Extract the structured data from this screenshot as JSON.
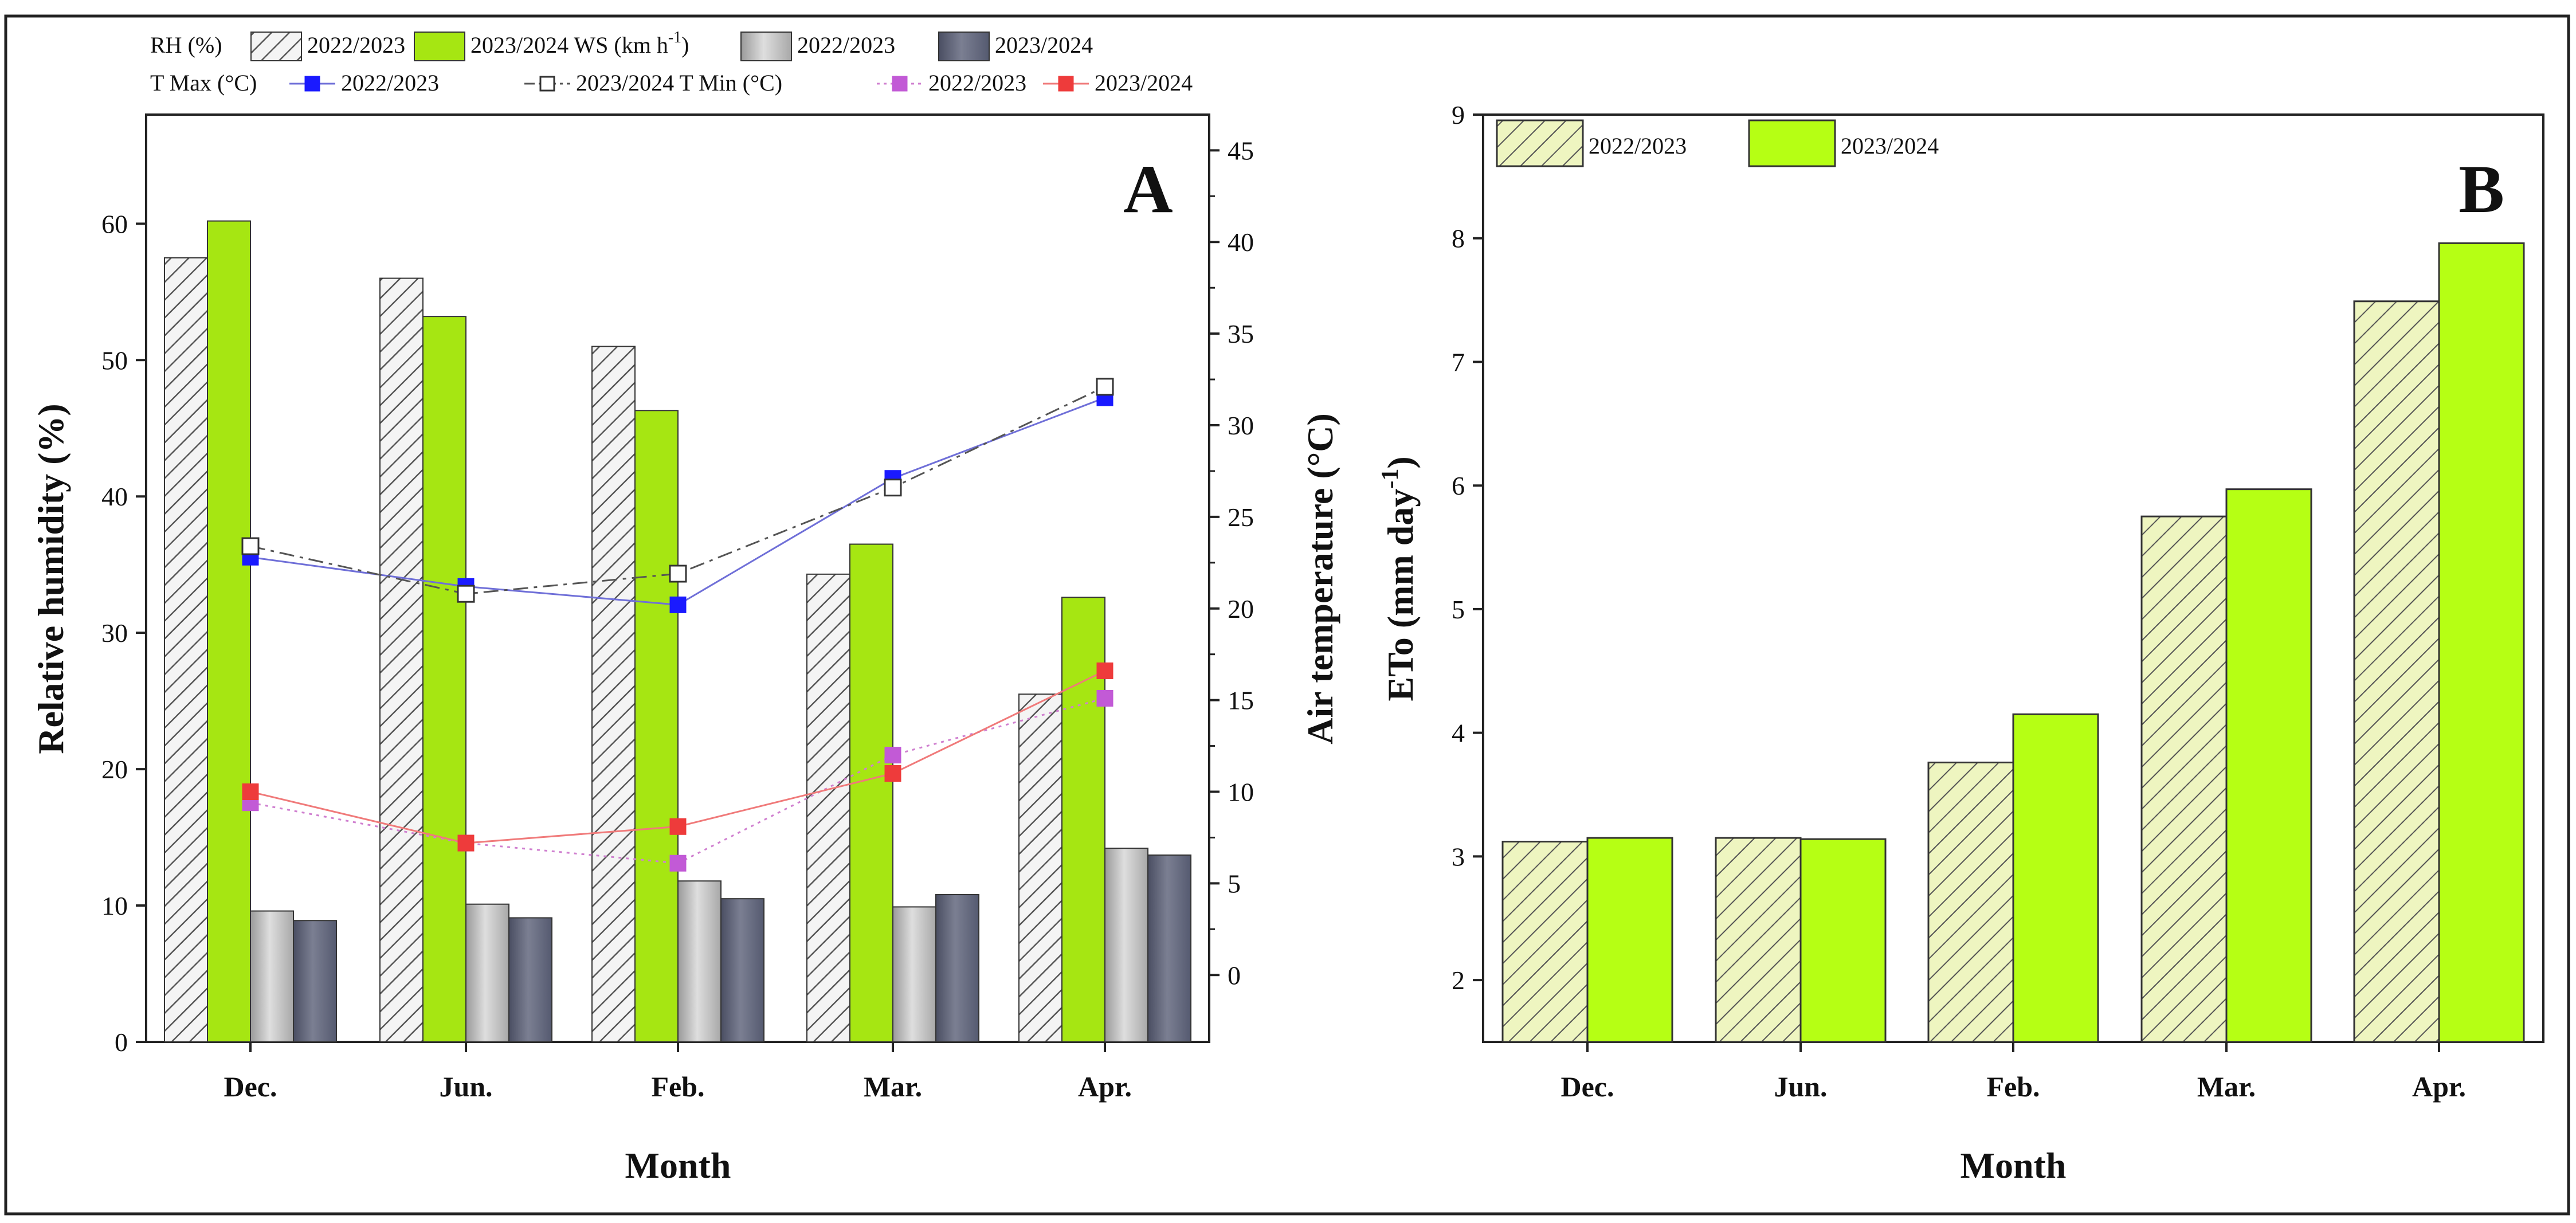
{
  "figure": {
    "panel_a_label": "A",
    "panel_b_label": "B"
  },
  "colors": {
    "rh_2022_fill": "#f4f4f4",
    "rh_2022_hatch": "#555555",
    "rh_2023": "#a6e612",
    "ws_2022": "#c4c4c4",
    "ws_2023": "#6f7280",
    "tmax_2022": "#1a1aff",
    "tmax_2023": "#333333",
    "tmin_2022": "#c25ad6",
    "tmin_2023": "#ee3b3b",
    "line_tmax_2022": "#6f6fd8",
    "line_tmax_2023": "#555555",
    "line_tmin_2022": "#d080d0",
    "line_tmin_2023": "#f07a7a",
    "eto_2022_fill": "#eef5c0",
    "eto_2022_hatch": "#555555",
    "eto_2023": "#b6ff14"
  },
  "legend_a": {
    "row1": [
      {
        "text": "RH (%)",
        "key": null
      },
      {
        "text": "2022/2023",
        "key": "rh_2022"
      },
      {
        "text": "2023/2024 WS (km h",
        "sup": "-1",
        "after": ")",
        "key": "rh_2023"
      },
      {
        "text": "2022/2023",
        "key": "ws_2022"
      },
      {
        "text": "2023/2024",
        "key": "ws_2023"
      }
    ],
    "row2": [
      {
        "text": "T Max (°C)",
        "key": null
      },
      {
        "text": "2022/2023",
        "key": "tmax_2022"
      },
      {
        "text": "2023/2024 T Min (°C)",
        "key": "tmax_2023"
      },
      {
        "text": "2022/2023",
        "key": "tmin_2022"
      },
      {
        "text": "2023/2024",
        "key": "tmin_2023"
      }
    ]
  },
  "legend_b": [
    {
      "text": "2022/2023",
      "key": "eto_2022"
    },
    {
      "text": "2023/2024",
      "key": "eto_2023"
    }
  ],
  "chart_data": [
    {
      "panel": "A",
      "type": "bar+line",
      "categories": [
        "Dec.",
        "Jun.",
        "Feb.",
        "Mar.",
        "Apr."
      ],
      "xlabel": "Month",
      "ylabel": "Relative humidity (%)",
      "y2label": "Air temperature (°C)",
      "ylim": [
        0,
        68
      ],
      "y2lim": [
        -3.65,
        46.95
      ],
      "yticks": [
        0,
        10,
        20,
        30,
        40,
        50,
        60
      ],
      "y2ticks": [
        0,
        5,
        10,
        15,
        20,
        25,
        30,
        35,
        40,
        45
      ],
      "bar_series": [
        {
          "name": "RH (%) 2022/2023",
          "key": "rh_2022",
          "axis": "left",
          "values": [
            57.5,
            56,
            51,
            34.3,
            25.5
          ]
        },
        {
          "name": "RH (%) 2023/2024",
          "key": "rh_2023",
          "axis": "left",
          "values": [
            60.2,
            53.2,
            46.3,
            36.5,
            32.6
          ]
        },
        {
          "name": "WS (km h-1) 2022/2023",
          "key": "ws_2022",
          "axis": "left",
          "values": [
            9.6,
            10.1,
            11.8,
            9.9,
            14.2
          ]
        },
        {
          "name": "WS (km h-1) 2023/2024",
          "key": "ws_2023",
          "axis": "left",
          "values": [
            8.9,
            9.1,
            10.5,
            10.8,
            13.7
          ]
        }
      ],
      "line_series": [
        {
          "name": "T Max (°C) 2022/2023",
          "key": "tmax_2022",
          "axis": "right",
          "style": "solid",
          "marker": "filled-square",
          "values": [
            22.8,
            21.2,
            20.2,
            27.1,
            31.5
          ]
        },
        {
          "name": "T Max (°C) 2023/2024",
          "key": "tmax_2023",
          "axis": "right",
          "style": "dashdot",
          "marker": "open-square",
          "values": [
            23.4,
            20.8,
            21.9,
            26.6,
            32.1
          ]
        },
        {
          "name": "T Min (°C) 2022/2023",
          "key": "tmin_2022",
          "axis": "right",
          "style": "dotted",
          "marker": "filled-square",
          "values": [
            9.4,
            7.2,
            6.1,
            12.0,
            15.1
          ]
        },
        {
          "name": "T Min (°C) 2023/2024",
          "key": "tmin_2023",
          "axis": "right",
          "style": "solid",
          "marker": "filled-square",
          "values": [
            10.0,
            7.2,
            8.1,
            11.0,
            16.6
          ]
        }
      ]
    },
    {
      "panel": "B",
      "type": "bar",
      "categories": [
        "Dec.",
        "Jun.",
        "Feb.",
        "Mar.",
        "Apr."
      ],
      "xlabel": "Month",
      "ylabel": "ETo (mm day",
      "ylabel_sup": "-1",
      "ylabel_after": ")",
      "ylim": [
        1.5,
        9
      ],
      "yticks": [
        2,
        3,
        4,
        5,
        6,
        7,
        8,
        9
      ],
      "series": [
        {
          "name": "2022/2023",
          "key": "eto_2022",
          "values": [
            3.12,
            3.15,
            3.76,
            5.75,
            7.49
          ]
        },
        {
          "name": "2023/2024",
          "key": "eto_2023",
          "values": [
            3.15,
            3.14,
            4.15,
            5.97,
            7.96
          ]
        }
      ]
    }
  ]
}
